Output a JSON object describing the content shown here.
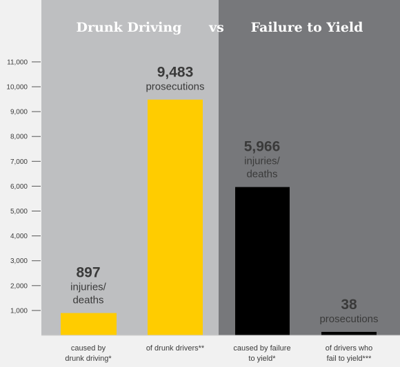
{
  "colors": {
    "panel_left": "#bebfc1",
    "panel_right": "#77787b",
    "bar_yellow": "#ffcc00",
    "bar_black": "#000000",
    "text_dark": "#3a3a3a",
    "text_light": "#3a3a3a"
  },
  "chart_data": {
    "type": "bar",
    "headers": {
      "left": "Drunk Driving",
      "vs": "vs",
      "right": "Failure to Yield"
    },
    "yticks": [
      1000,
      2000,
      3000,
      4000,
      5000,
      6000,
      7000,
      8000,
      9000,
      10000,
      11000
    ],
    "ytick_labels": [
      "1,000",
      "2,000",
      "3,000",
      "4,000",
      "5,000",
      "6,000",
      "7,000",
      "8,000",
      "9,000",
      "10,000",
      "11,000"
    ],
    "ylim": [
      0,
      11500
    ],
    "bars": [
      {
        "category": [
          "caused by",
          "drunk driving*"
        ],
        "value": 897,
        "value_label": "897",
        "label_lines": [
          "injuries/",
          "deaths"
        ],
        "color": "#ffcc00",
        "panel": "left"
      },
      {
        "category": [
          "of drunk drivers**"
        ],
        "value": 9483,
        "value_label": "9,483",
        "label_lines": [
          "prosecutions"
        ],
        "color": "#ffcc00",
        "panel": "left"
      },
      {
        "category": [
          "caused by failure",
          "to yield*"
        ],
        "value": 5966,
        "value_label": "5,966",
        "label_lines": [
          "injuries/",
          "deaths"
        ],
        "color": "#000000",
        "panel": "right"
      },
      {
        "category": [
          "of drivers who",
          "fail to yield***"
        ],
        "value": 38,
        "value_label": "38",
        "label_lines": [
          "prosecutions"
        ],
        "color": "#000000",
        "panel": "right"
      }
    ]
  }
}
